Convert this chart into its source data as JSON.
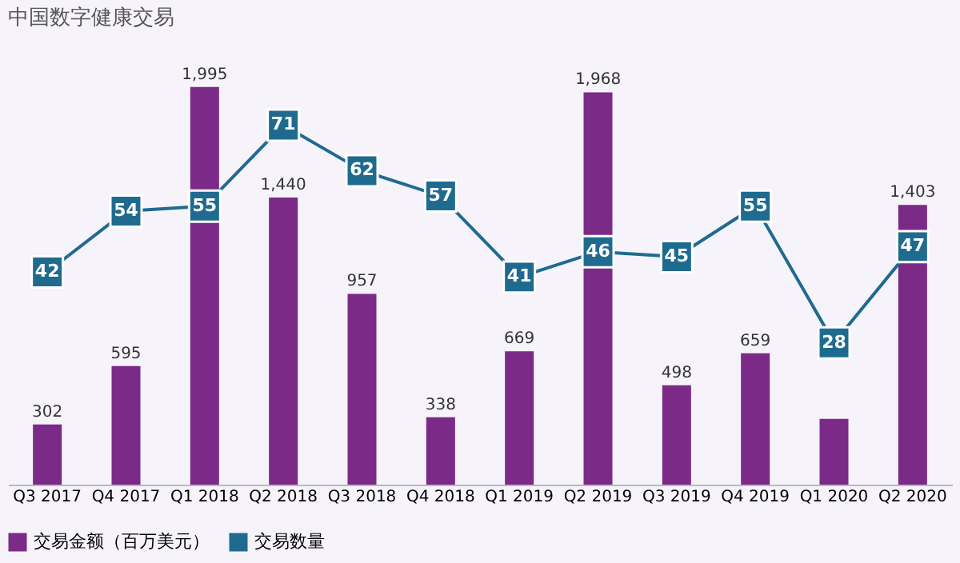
{
  "chart_data": {
    "type": "bar",
    "title": "中国数字健康交易",
    "categories": [
      "Q3 2017",
      "Q4 2017",
      "Q1 2018",
      "Q2 2018",
      "Q3 2018",
      "Q4 2018",
      "Q1 2019",
      "Q2 2019",
      "Q3 2019",
      "Q4 2019",
      "Q1 2020",
      "Q2 2020"
    ],
    "series": [
      {
        "name": "交易金额（百万美元）",
        "color": "#7b2a87",
        "values": [
          302,
          595,
          1995,
          1440,
          957,
          338,
          669,
          1968,
          498,
          659,
          330,
          1403
        ],
        "value_labels": [
          "302",
          "595",
          "1,995",
          "1,440",
          "957",
          "338",
          "669",
          "1,968",
          "498",
          "659",
          null,
          "1,403"
        ]
      },
      {
        "name": "交易数量",
        "type": "line",
        "axis": "y2",
        "color": "#1f6b8f",
        "marker": "square",
        "values": [
          42,
          54,
          55,
          71,
          62,
          57,
          41,
          46,
          45,
          55,
          28,
          47
        ],
        "data_labels": true
      }
    ],
    "legend": "bottom",
    "grid": false,
    "tick_labels": "x"
  }
}
